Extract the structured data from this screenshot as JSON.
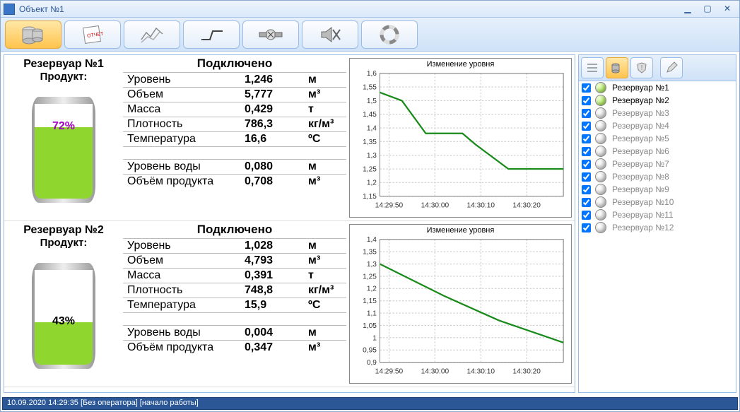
{
  "window": {
    "title": "Объект №1"
  },
  "toolbar_active_index": 0,
  "tanks": [
    {
      "title": "Резервуар №1",
      "product_label": "Продукт:",
      "status": "Подключено",
      "fill_pct": 72,
      "fill_color": "#8fd62e",
      "pct_color": "#a000c0",
      "pct_text": "72%",
      "params": [
        {
          "label": "Уровень",
          "value": "1,246",
          "unit": "м"
        },
        {
          "label": "Объем",
          "value": "5,777",
          "unit": "м³"
        },
        {
          "label": "Масса",
          "value": "0,429",
          "unit": "т"
        },
        {
          "label": "Плотность",
          "value": "786,3",
          "unit": "кг/м³"
        },
        {
          "label": "Температура",
          "value": "16,6",
          "unit": "ºC"
        }
      ],
      "params2": [
        {
          "label": "Уровень воды",
          "value": "0,080",
          "unit": "м"
        },
        {
          "label": "Объём продукта",
          "value": "0,708",
          "unit": "м³"
        }
      ],
      "chart": {
        "title": "Изменение уровня",
        "ylim": [
          1.15,
          1.6
        ],
        "yticks": [
          1.15,
          1.2,
          1.25,
          1.3,
          1.35,
          1.4,
          1.45,
          1.5,
          1.55,
          1.6
        ],
        "xticks": [
          "14:29:50",
          "14:30:00",
          "14:30:10",
          "14:30:20"
        ],
        "series_color": "#1a8a1a",
        "points": [
          [
            0,
            1.53
          ],
          [
            0.12,
            1.5
          ],
          [
            0.25,
            1.38
          ],
          [
            0.45,
            1.38
          ],
          [
            0.52,
            1.34
          ],
          [
            0.7,
            1.25
          ],
          [
            1.0,
            1.25
          ]
        ]
      }
    },
    {
      "title": "Резервуар №2",
      "product_label": "Продукт:",
      "status": "Подключено",
      "fill_pct": 43,
      "fill_color": "#8fd62e",
      "pct_color": "#000000",
      "pct_text": "43%",
      "params": [
        {
          "label": "Уровень",
          "value": "1,028",
          "unit": "м"
        },
        {
          "label": "Объем",
          "value": "4,793",
          "unit": "м³"
        },
        {
          "label": "Масса",
          "value": "0,391",
          "unit": "т"
        },
        {
          "label": "Плотность",
          "value": "748,8",
          "unit": "кг/м³"
        },
        {
          "label": "Температура",
          "value": "15,9",
          "unit": "ºC"
        }
      ],
      "params2": [
        {
          "label": "Уровень воды",
          "value": "0,004",
          "unit": "м"
        },
        {
          "label": "Объём продукта",
          "value": "0,347",
          "unit": "м³"
        }
      ],
      "chart": {
        "title": "Изменение уровня",
        "ylim": [
          0.9,
          1.4
        ],
        "yticks": [
          0.9,
          0.95,
          1.0,
          1.05,
          1.1,
          1.15,
          1.2,
          1.25,
          1.3,
          1.35,
          1.4
        ],
        "xticks": [
          "14:29:50",
          "14:30:00",
          "14:30:10",
          "14:30:20"
        ],
        "series_color": "#1a8a1a",
        "points": [
          [
            0,
            1.3
          ],
          [
            0.35,
            1.17
          ],
          [
            0.65,
            1.07
          ],
          [
            1.0,
            0.98
          ]
        ]
      }
    }
  ],
  "right_panel": {
    "active_index": 1,
    "items": [
      {
        "label": "Резервуар №1",
        "on": true
      },
      {
        "label": "Резервуар №2",
        "on": true
      },
      {
        "label": "Резервуар №3",
        "on": false
      },
      {
        "label": "Резервуар №4",
        "on": false
      },
      {
        "label": "Резервуар №5",
        "on": false
      },
      {
        "label": "Резервуар №6",
        "on": false
      },
      {
        "label": "Резервуар №7",
        "on": false
      },
      {
        "label": "Резервуар №8",
        "on": false
      },
      {
        "label": "Резервуар №9",
        "on": false
      },
      {
        "label": "Резервуар №10",
        "on": false
      },
      {
        "label": "Резервуар №11",
        "on": false
      },
      {
        "label": "Резервуар №12",
        "on": false
      }
    ]
  },
  "statusbar": "10.09.2020 14:29:35 [Без оператора] [начало работы]"
}
